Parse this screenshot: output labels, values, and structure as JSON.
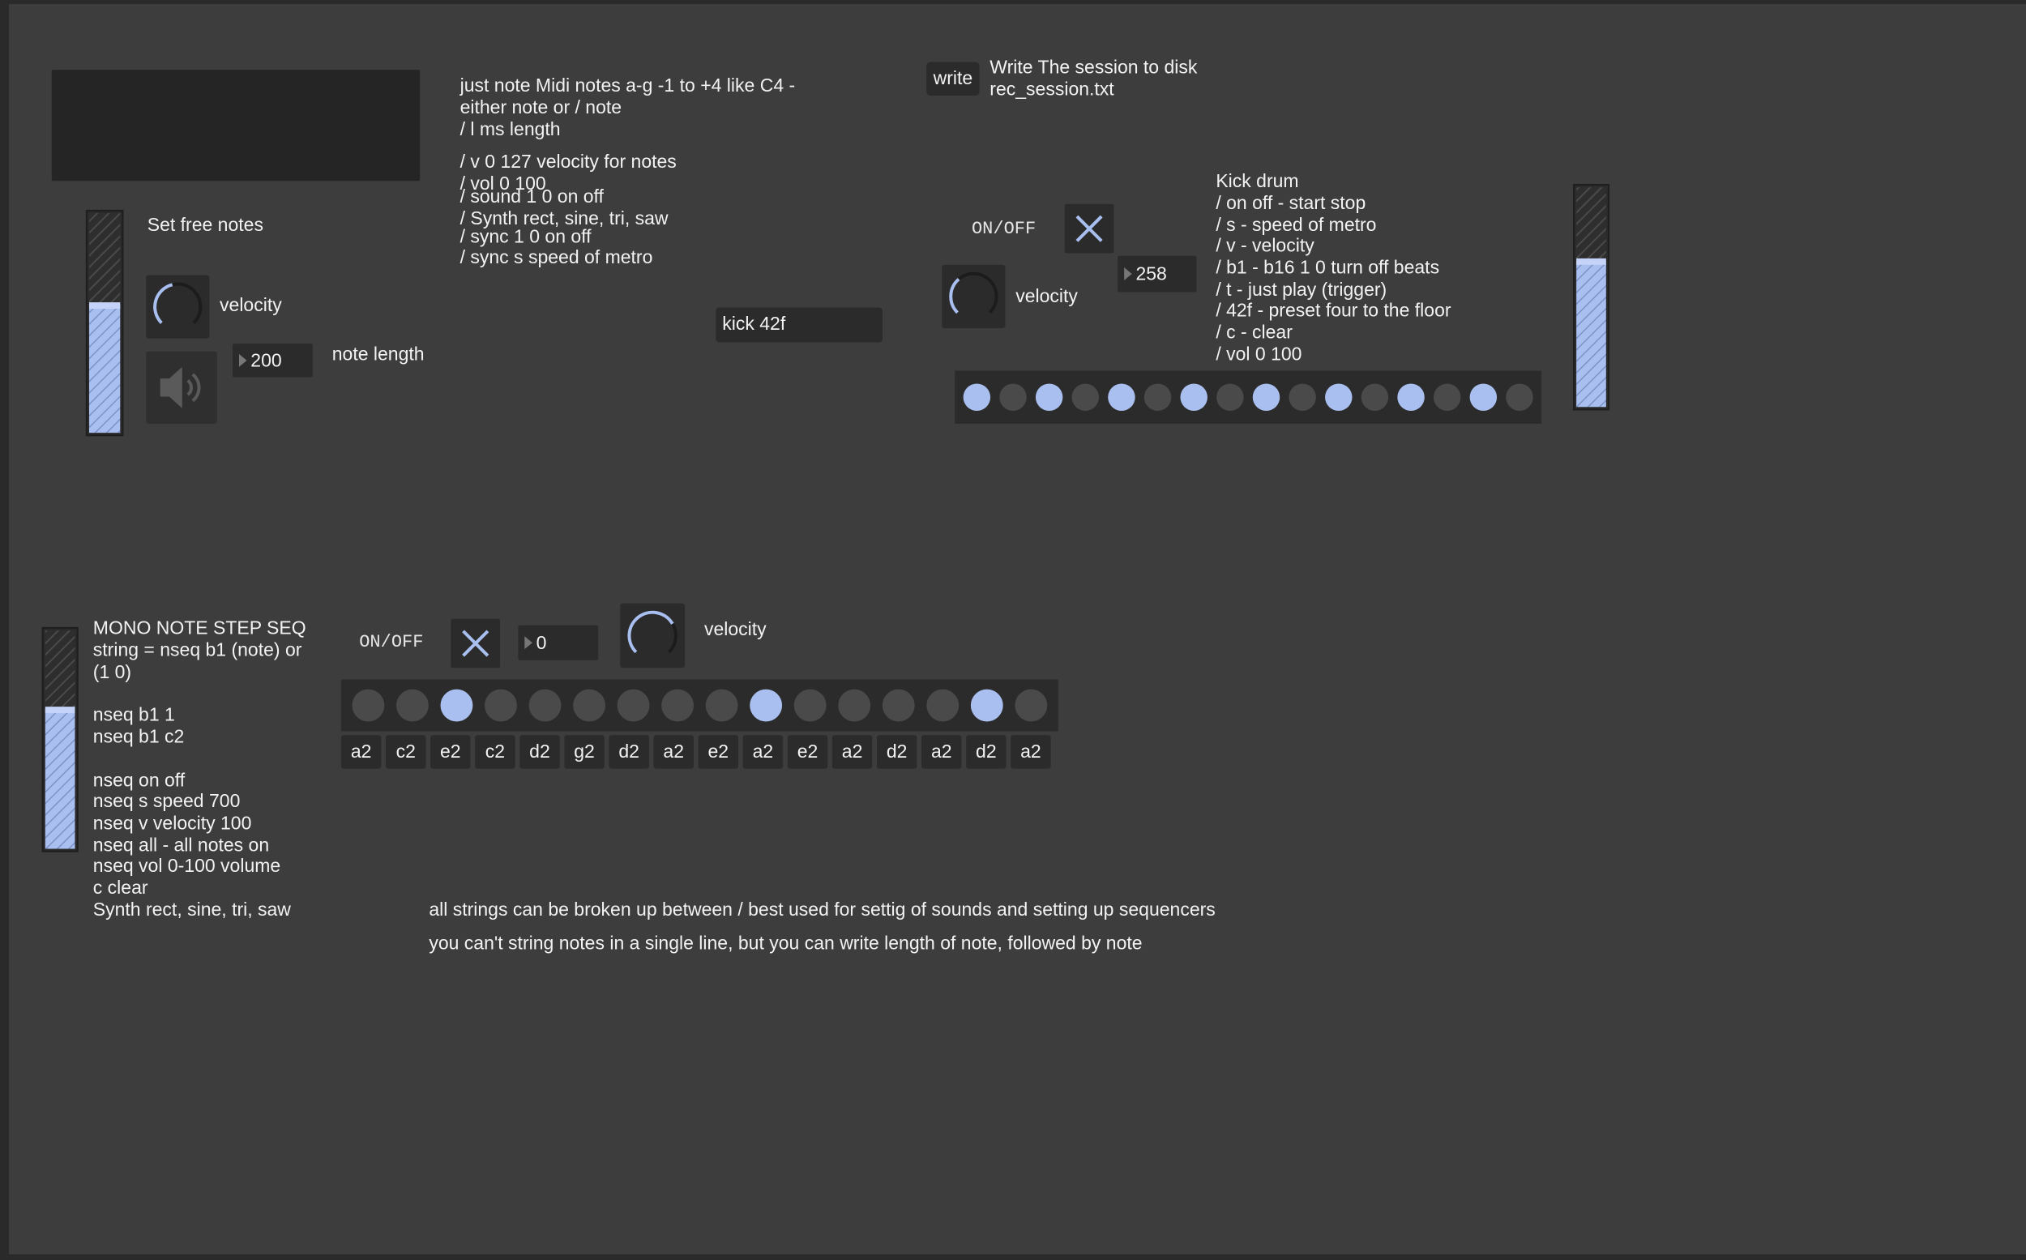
{
  "free_notes": {
    "title": "Set free notes",
    "velocity_label": "velocity",
    "note_length": 200,
    "note_length_label": "note length"
  },
  "notes_help": [
    "just note  Midi notes a-g -1 to +4 like C4 -",
    "either note or / note",
    "/ l ms length",
    "/ v 0 127 velocity for notes",
    "/ vol 0 100",
    "/ sound 1 0 on off",
    "/ Synth rect, sine, tri, saw",
    "/ sync 1 0 on off",
    "/ sync s speed of metro"
  ],
  "write": {
    "button": "write",
    "lines": [
      "Write The session to disk",
      "rec_session.txt"
    ]
  },
  "kick": {
    "message": "kick 42f",
    "toggle_label": "ON/OFF",
    "speed": 258,
    "velocity_label": "velocity",
    "help": [
      "Kick drum",
      "/ on off - start stop",
      "/ s - speed of metro",
      "/ v - velocity",
      "/ b1 - b16 1 0 turn off beats",
      "/ t - just play (trigger)",
      "/ 42f - preset four to the floor",
      "/ c - clear",
      "/ vol 0 100"
    ],
    "steps": [
      true,
      false,
      true,
      false,
      true,
      false,
      true,
      false,
      true,
      false,
      true,
      false,
      true,
      false,
      true,
      false
    ]
  },
  "mono_seq": {
    "help": [
      "MONO NOTE STEP SEQ",
      "string = nseq b1 (note) or",
      "(1 0)",
      "nseq b1 1",
      "nseq b1 c2",
      "nseq on off",
      "nseq s speed 700",
      "nseq v velocity 100",
      "nseq all - all notes on",
      "nseq vol 0-100 volume",
      "c clear",
      "Synth rect, sine, tri, saw"
    ],
    "toggle_label": "ON/OFF",
    "speed": 0,
    "velocity_label": "velocity",
    "steps": [
      false,
      false,
      true,
      false,
      false,
      false,
      false,
      false,
      false,
      true,
      false,
      false,
      false,
      false,
      true,
      false
    ],
    "notes": [
      "a2",
      "c2",
      "e2",
      "c2",
      "d2",
      "g2",
      "d2",
      "a2",
      "e2",
      "a2",
      "e2",
      "a2",
      "d2",
      "a2",
      "d2",
      "a2"
    ]
  },
  "footer": [
    "all strings can be broken up between / best used for settig of sounds and setting up sequencers",
    "you can't string notes in a single line, but you can write length of note, followed by note"
  ]
}
